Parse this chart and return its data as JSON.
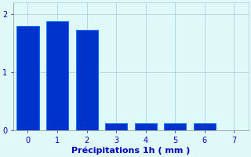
{
  "categories": [
    0,
    1,
    2,
    3,
    4,
    5,
    6
  ],
  "values": [
    1.8,
    1.87,
    1.72,
    0.12,
    0.12,
    0.12,
    0.12
  ],
  "bar_color": "#0033cc",
  "bar_edge_color": "#0077ff",
  "background_color": "#dff8f8",
  "grid_color": "#aacccc",
  "xlabel": "Précipitations 1h ( mm )",
  "xlabel_color": "#0000bb",
  "tick_color": "#0000bb",
  "ylim": [
    0,
    2.2
  ],
  "xlim": [
    -0.5,
    7.5
  ],
  "yticks": [
    0,
    1,
    2
  ],
  "xticks": [
    0,
    1,
    2,
    3,
    4,
    5,
    6,
    7
  ],
  "bar_width": 0.75,
  "figsize": [
    3.2,
    2.0
  ],
  "dpi": 100
}
